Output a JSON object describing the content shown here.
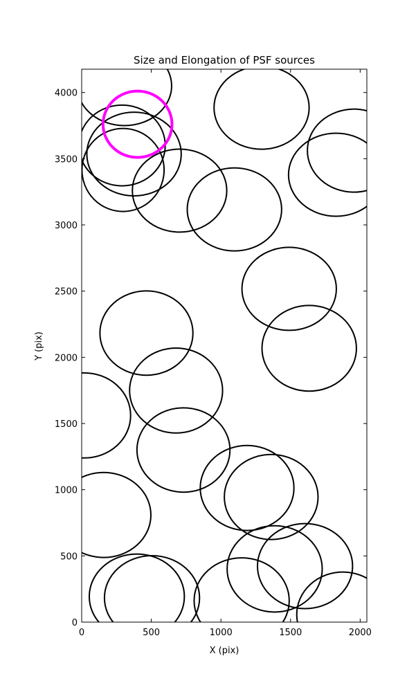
{
  "chart_data": {
    "type": "ellipse",
    "title": "Size and Elongation of PSF sources",
    "xlabel": "X (pix)",
    "ylabel": "Y (pix)",
    "xlim": [
      0,
      2048
    ],
    "ylim": [
      0,
      4176
    ],
    "xticks": [
      0,
      500,
      1000,
      1500,
      2000
    ],
    "yticks": [
      0,
      500,
      1000,
      1500,
      2000,
      2500,
      3000,
      3500,
      4000
    ],
    "series": [
      {
        "color": "#000000",
        "x": [
          307,
          376,
          297,
          290,
          703,
          1097,
          1292,
          1955,
          1827,
          1490,
          1634,
          465,
          678,
          731,
          20,
          158,
          1188,
          1361,
          1386,
          1604,
          396,
          505,
          1149,
          1876
        ],
        "y": [
          4050,
          3535,
          3415,
          3600,
          3259,
          3117,
          3885,
          3561,
          3379,
          2517,
          2068,
          2183,
          1749,
          1300,
          1561,
          809,
          1013,
          945,
          402,
          423,
          193,
          183,
          162,
          57
        ],
        "width": [
          678,
          678,
          590,
          620,
          678,
          678,
          683,
          668,
          683,
          678,
          678,
          668,
          668,
          668,
          663,
          678,
          673,
          673,
          683,
          683,
          683,
          683,
          683,
          663
        ],
        "height": [
          600,
          632,
          627,
          610,
          627,
          627,
          627,
          627,
          627,
          627,
          647,
          637,
          642,
          637,
          642,
          642,
          642,
          642,
          652,
          642,
          642,
          637,
          647,
          642
        ]
      },
      {
        "color": "#ff00ff",
        "x": [
          401
        ],
        "y": [
          3760
        ],
        "width": [
          495
        ],
        "height": [
          501
        ]
      }
    ]
  }
}
